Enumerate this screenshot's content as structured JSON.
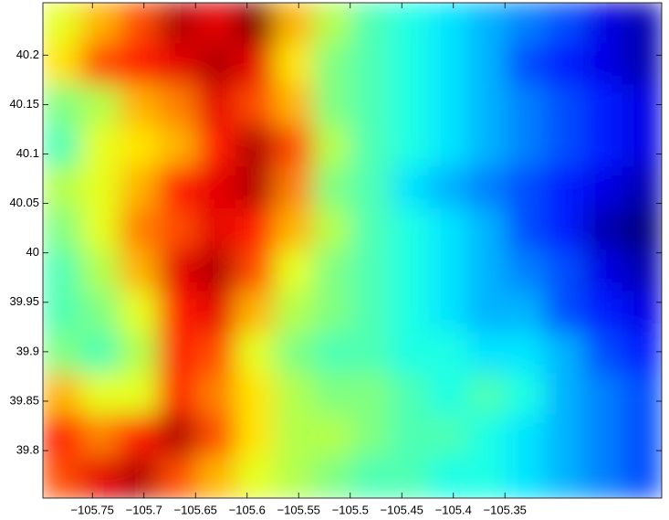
{
  "chart_data": {
    "type": "heatmap",
    "colormap": "jet",
    "xlim": [
      -105.798,
      -105.198
    ],
    "ylim": [
      39.752,
      40.253
    ],
    "xticks": [
      {
        "value": -105.75,
        "label": "−105.75"
      },
      {
        "value": -105.7,
        "label": "−105.7"
      },
      {
        "value": -105.65,
        "label": "−105.65"
      },
      {
        "value": -105.6,
        "label": "−105.6"
      },
      {
        "value": -105.55,
        "label": "−105.55"
      },
      {
        "value": -105.5,
        "label": "−105.5"
      },
      {
        "value": -105.45,
        "label": "−105.45"
      },
      {
        "value": -105.4,
        "label": "−105.4"
      },
      {
        "value": -105.35,
        "label": "−105.35"
      }
    ],
    "yticks": [
      39.8,
      39.85,
      39.9,
      39.95,
      40,
      40.05,
      40.1,
      40.15,
      40.2
    ],
    "z": [
      [
        0.6,
        0.7,
        0.8,
        0.95,
        0.9,
        1,
        0.7,
        0.55,
        0.45,
        0.4,
        0.35,
        0.3,
        0.25,
        0.2,
        0.1,
        0.05
      ],
      [
        0.65,
        0.8,
        0.85,
        0.9,
        0.95,
        0.9,
        0.65,
        0.5,
        0.45,
        0.4,
        0.35,
        0.3,
        0.2,
        0.15,
        0.1,
        0.05
      ],
      [
        0.5,
        0.55,
        0.7,
        0.75,
        0.9,
        0.8,
        0.7,
        0.5,
        0.45,
        0.4,
        0.35,
        0.3,
        0.25,
        0.2,
        0.15,
        0.1
      ],
      [
        0.45,
        0.6,
        0.65,
        0.7,
        0.85,
        0.95,
        0.8,
        0.55,
        0.45,
        0.4,
        0.35,
        0.3,
        0.25,
        0.2,
        0.15,
        0.1
      ],
      [
        0.55,
        0.6,
        0.7,
        0.85,
        0.9,
        0.95,
        0.75,
        0.5,
        0.45,
        0.35,
        0.3,
        0.25,
        0.2,
        0.15,
        0.1,
        0.05
      ],
      [
        0.5,
        0.6,
        0.75,
        0.8,
        0.9,
        0.85,
        0.7,
        0.55,
        0.45,
        0.4,
        0.35,
        0.3,
        0.2,
        0.15,
        0.05,
        0
      ],
      [
        0.45,
        0.55,
        0.7,
        0.9,
        0.95,
        0.8,
        0.6,
        0.5,
        0.45,
        0.4,
        0.35,
        0.3,
        0.25,
        0.2,
        0.1,
        0.05
      ],
      [
        0.45,
        0.5,
        0.6,
        0.85,
        0.9,
        0.7,
        0.55,
        0.5,
        0.45,
        0.4,
        0.35,
        0.3,
        0.3,
        0.2,
        0.15,
        0.1
      ],
      [
        0.5,
        0.45,
        0.55,
        0.85,
        0.8,
        0.6,
        0.5,
        0.45,
        0.45,
        0.4,
        0.4,
        0.35,
        0.35,
        0.3,
        0.2,
        0.15
      ],
      [
        0.7,
        0.6,
        0.6,
        0.85,
        0.75,
        0.65,
        0.55,
        0.5,
        0.5,
        0.45,
        0.4,
        0.45,
        0.4,
        0.3,
        0.25,
        0.2
      ],
      [
        0.85,
        0.75,
        0.85,
        0.95,
        0.8,
        0.65,
        0.55,
        0.55,
        0.5,
        0.45,
        0.45,
        0.4,
        0.35,
        0.3,
        0.25,
        0.2
      ],
      [
        0.8,
        0.9,
        0.95,
        0.8,
        0.7,
        0.6,
        0.55,
        0.5,
        0.45,
        0.45,
        0.4,
        0.4,
        0.35,
        0.3,
        0.25,
        0.2
      ]
    ]
  }
}
